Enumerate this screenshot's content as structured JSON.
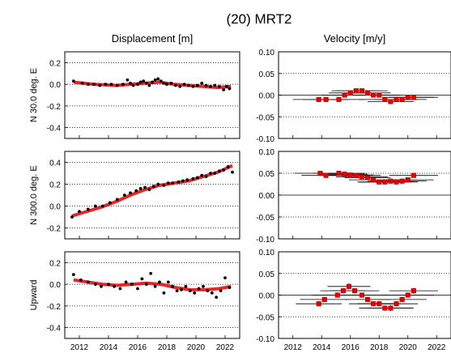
{
  "figure": {
    "title": "(20) MRT2",
    "left_column_title": "Displacement [m]",
    "right_column_title": "Velocity [m/y]"
  },
  "colors": {
    "point": "#000000",
    "trend": "#e60000",
    "axis": "#000000",
    "grid": "#000000"
  },
  "chart_data": [
    {
      "type": "scatter",
      "panel": "displacement-north-30",
      "ylabel": "N 30.0 deg. E",
      "xlim": [
        2011.0,
        2023.0
      ],
      "ylim": [
        -0.5,
        0.3
      ],
      "xticks": [
        2012,
        2014,
        2016,
        2018,
        2020,
        2022
      ],
      "yticks": [
        "0.2",
        "0.0",
        "-0.2",
        "-0.4"
      ],
      "yticks_values": [
        0.2,
        0.0,
        -0.2,
        -0.4
      ],
      "dotted_grid_at": [
        0.2,
        0.0,
        -0.2,
        -0.4
      ],
      "x": [
        2011.6,
        2012.2,
        2012.6,
        2013.0,
        2013.4,
        2013.8,
        2014.2,
        2014.6,
        2015.0,
        2015.3,
        2015.5,
        2015.7,
        2016.0,
        2016.2,
        2016.4,
        2016.6,
        2016.8,
        2017.0,
        2017.2,
        2017.4,
        2017.6,
        2017.8,
        2018.0,
        2018.3,
        2018.6,
        2018.9,
        2019.2,
        2019.5,
        2019.8,
        2020.1,
        2020.4,
        2020.7,
        2021.0,
        2021.3,
        2021.6,
        2021.9,
        2022.1,
        2022.3
      ],
      "y": [
        0.03,
        0.01,
        0.0,
        0.0,
        -0.01,
        0.0,
        0.0,
        -0.01,
        0.0,
        0.04,
        0.01,
        -0.01,
        0.0,
        0.02,
        0.03,
        0.01,
        -0.01,
        0.02,
        0.04,
        0.05,
        0.03,
        0.01,
        0.0,
        0.01,
        -0.01,
        -0.02,
        0.0,
        -0.01,
        -0.02,
        -0.01,
        0.01,
        -0.01,
        -0.02,
        -0.01,
        -0.02,
        -0.05,
        -0.02,
        -0.04
      ],
      "trend_x": [
        2011.6,
        2013.0,
        2014.5,
        2015.5,
        2016.5,
        2017.5,
        2018.5,
        2019.5,
        2020.5,
        2021.5,
        2022.4
      ],
      "trend_y": [
        0.02,
        0.0,
        -0.01,
        0.0,
        0.01,
        0.02,
        0.0,
        -0.01,
        -0.02,
        -0.03,
        -0.02
      ]
    },
    {
      "type": "errorbar",
      "panel": "velocity-north-30",
      "xlim": [
        2011.0,
        2023.0
      ],
      "ylim": [
        -0.1,
        0.1
      ],
      "xticks": [
        2012,
        2014,
        2016,
        2018,
        2020,
        2022
      ],
      "yticks": [
        "0.10",
        "0.05",
        "0.00",
        "-0.05",
        "-0.10"
      ],
      "yticks_values": [
        0.1,
        0.05,
        0.0,
        -0.05,
        -0.1
      ],
      "dotted_grid_at": [
        0.05,
        -0.05
      ],
      "solid_line_at": 0.0,
      "x": [
        2013.8,
        2014.3,
        2015.2,
        2015.6,
        2016.0,
        2016.4,
        2016.8,
        2017.2,
        2017.6,
        2018.0,
        2018.4,
        2018.8,
        2019.2,
        2019.6,
        2020.0,
        2020.4
      ],
      "y": [
        -0.01,
        -0.01,
        -0.01,
        0.0,
        0.005,
        0.01,
        0.01,
        0.005,
        0.0,
        0.0,
        -0.01,
        -0.015,
        -0.01,
        -0.01,
        -0.005,
        -0.005
      ],
      "xerr": [
        1.8,
        1.6,
        1.8,
        1.6,
        1.5,
        1.7,
        1.8,
        1.6,
        1.7,
        1.5,
        1.8,
        1.6,
        1.5,
        1.7,
        1.8,
        1.7
      ],
      "yerr": [
        0.004,
        0.004,
        0.005,
        0.004,
        0.004,
        0.005,
        0.004,
        0.004,
        0.004,
        0.004,
        0.004,
        0.005,
        0.004,
        0.004,
        0.004,
        0.004
      ]
    },
    {
      "type": "scatter",
      "panel": "displacement-north-300",
      "ylabel": "N 300.0 deg. E",
      "xlim": [
        2011.0,
        2023.0
      ],
      "ylim": [
        -0.3,
        0.5
      ],
      "xticks": [
        2012,
        2014,
        2016,
        2018,
        2020,
        2022
      ],
      "yticks": [
        "0.4",
        "0.2",
        "0.0",
        "-0.2"
      ],
      "yticks_values": [
        0.4,
        0.2,
        0.0,
        -0.2
      ],
      "dotted_grid_at": [
        0.4,
        0.2,
        0.0,
        -0.2
      ],
      "x": [
        2011.5,
        2012.0,
        2012.6,
        2013.1,
        2013.6,
        2014.1,
        2014.6,
        2015.1,
        2015.5,
        2015.9,
        2016.2,
        2016.5,
        2016.8,
        2017.1,
        2017.4,
        2017.8,
        2018.1,
        2018.4,
        2018.8,
        2019.1,
        2019.4,
        2019.8,
        2020.1,
        2020.4,
        2020.7,
        2021.0,
        2021.3,
        2021.6,
        2021.9,
        2022.2,
        2022.5
      ],
      "y": [
        -0.1,
        -0.05,
        -0.03,
        0.0,
        0.0,
        0.03,
        0.06,
        0.1,
        0.12,
        0.14,
        0.16,
        0.17,
        0.15,
        0.18,
        0.2,
        0.19,
        0.21,
        0.21,
        0.22,
        0.23,
        0.24,
        0.25,
        0.26,
        0.28,
        0.27,
        0.3,
        0.3,
        0.32,
        0.33,
        0.36,
        0.31
      ],
      "trend_x": [
        2011.5,
        2012.5,
        2013.5,
        2014.5,
        2015.5,
        2016.5,
        2017.5,
        2018.5,
        2019.5,
        2020.5,
        2021.5,
        2022.5
      ],
      "trend_y": [
        -0.09,
        -0.05,
        -0.01,
        0.04,
        0.1,
        0.15,
        0.19,
        0.21,
        0.23,
        0.27,
        0.31,
        0.37
      ]
    },
    {
      "type": "errorbar",
      "panel": "velocity-north-300",
      "xlim": [
        2011.0,
        2023.0
      ],
      "ylim": [
        -0.1,
        0.1
      ],
      "xticks": [
        2012,
        2014,
        2016,
        2018,
        2020,
        2022
      ],
      "yticks": [
        "0.10",
        "0.05",
        "0.00",
        "-0.05",
        "-0.10"
      ],
      "yticks_values": [
        0.1,
        0.05,
        0.0,
        -0.05,
        -0.1
      ],
      "dotted_grid_at": [
        0.05,
        -0.05
      ],
      "solid_line_at": 0.0,
      "x": [
        2013.9,
        2014.3,
        2015.2,
        2015.6,
        2016.0,
        2016.4,
        2016.8,
        2017.2,
        2017.6,
        2018.0,
        2018.4,
        2018.8,
        2019.2,
        2019.6,
        2020.0,
        2020.4
      ],
      "y": [
        0.05,
        0.045,
        0.05,
        0.048,
        0.046,
        0.045,
        0.042,
        0.04,
        0.035,
        0.03,
        0.03,
        0.032,
        0.03,
        0.032,
        0.035,
        0.045
      ],
      "xerr": [
        1.8,
        1.7,
        1.8,
        1.6,
        1.6,
        1.7,
        1.8,
        1.6,
        1.7,
        1.5,
        1.8,
        1.6,
        1.5,
        1.7,
        1.8,
        1.7
      ],
      "yerr": [
        0.004,
        0.004,
        0.005,
        0.004,
        0.004,
        0.005,
        0.004,
        0.004,
        0.004,
        0.004,
        0.004,
        0.005,
        0.004,
        0.004,
        0.004,
        0.004
      ]
    },
    {
      "type": "scatter",
      "panel": "displacement-upward",
      "ylabel": "Upward",
      "xlim": [
        2011.0,
        2023.0
      ],
      "ylim": [
        -0.5,
        0.3
      ],
      "xticks": [
        2012,
        2014,
        2016,
        2018,
        2020,
        2022
      ],
      "xticklabels": [
        "2012",
        "2014",
        "2016",
        "2018",
        "2020",
        "2022"
      ],
      "yticks": [
        "0.2",
        "0.0",
        "-0.2",
        "-0.4"
      ],
      "yticks_values": [
        0.2,
        0.0,
        -0.2,
        -0.4
      ],
      "dotted_grid_at": [
        0.2,
        0.0,
        -0.2,
        -0.4
      ],
      "x": [
        2011.6,
        2012.1,
        2012.6,
        2013.1,
        2013.5,
        2014.0,
        2014.4,
        2014.8,
        2015.2,
        2015.6,
        2016.0,
        2016.3,
        2016.6,
        2016.9,
        2017.2,
        2017.5,
        2017.8,
        2018.1,
        2018.4,
        2018.7,
        2019.0,
        2019.3,
        2019.6,
        2019.9,
        2020.2,
        2020.5,
        2020.8,
        2021.1,
        2021.4,
        2021.7,
        2022.0,
        2022.3
      ],
      "y": [
        0.09,
        0.04,
        0.02,
        0.0,
        -0.02,
        0.0,
        -0.02,
        -0.04,
        0.02,
        0.0,
        -0.04,
        0.05,
        0.0,
        0.1,
        -0.02,
        0.02,
        -0.08,
        0.02,
        -0.02,
        -0.06,
        -0.05,
        -0.02,
        -0.06,
        -0.08,
        -0.04,
        -0.02,
        -0.06,
        -0.08,
        -0.12,
        -0.06,
        0.06,
        -0.03
      ],
      "trend_x": [
        2011.6,
        2012.6,
        2013.6,
        2014.6,
        2015.6,
        2016.6,
        2017.6,
        2018.6,
        2019.6,
        2020.6,
        2021.6,
        2022.4
      ],
      "trend_y": [
        0.04,
        0.02,
        0.0,
        -0.01,
        0.0,
        0.01,
        0.0,
        -0.03,
        -0.05,
        -0.05,
        -0.04,
        -0.02
      ]
    },
    {
      "type": "errorbar",
      "panel": "velocity-upward",
      "xlim": [
        2011.0,
        2023.0
      ],
      "ylim": [
        -0.1,
        0.1
      ],
      "xticks": [
        2012,
        2014,
        2016,
        2018,
        2020,
        2022
      ],
      "xticklabels": [
        "2012",
        "2014",
        "2016",
        "2018",
        "2020",
        "2022"
      ],
      "yticks": [
        "0.10",
        "0.05",
        "0.00",
        "-0.05",
        "-0.10"
      ],
      "yticks_values": [
        0.1,
        0.05,
        0.0,
        -0.05,
        -0.1
      ],
      "dotted_grid_at": [
        0.05,
        -0.05
      ],
      "solid_line_at": 0.0,
      "x": [
        2013.8,
        2014.2,
        2015.1,
        2015.5,
        2015.9,
        2016.3,
        2016.8,
        2017.2,
        2017.6,
        2018.0,
        2018.4,
        2018.8,
        2019.2,
        2019.6,
        2020.0,
        2020.4
      ],
      "y": [
        -0.02,
        -0.01,
        0.0,
        0.01,
        0.02,
        0.01,
        0.0,
        -0.01,
        -0.02,
        -0.02,
        -0.03,
        -0.03,
        -0.02,
        -0.01,
        0.0,
        0.01
      ],
      "xerr": [
        1.6,
        1.7,
        1.8,
        1.6,
        1.5,
        1.7,
        1.8,
        1.6,
        1.7,
        1.5,
        1.8,
        1.6,
        1.5,
        1.7,
        1.8,
        1.7
      ],
      "yerr": [
        0.006,
        0.005,
        0.006,
        0.006,
        0.007,
        0.006,
        0.006,
        0.005,
        0.006,
        0.006,
        0.006,
        0.007,
        0.006,
        0.006,
        0.006,
        0.007
      ]
    }
  ]
}
